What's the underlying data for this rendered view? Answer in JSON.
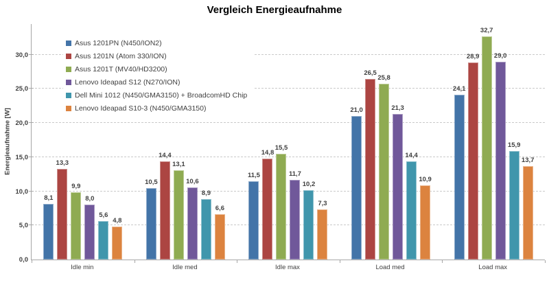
{
  "chart": {
    "title": "Vergleich Energieaufnahme",
    "ylabel": "Energieaufnahme [W]"
  },
  "colors": {
    "axis": "#a6a6a6",
    "grid": "#c9c9c9",
    "text": "#3f3f3f",
    "title": "#000000"
  },
  "chart_data": {
    "type": "bar",
    "title": "Vergleich Energieaufnahme",
    "xlabel": "",
    "ylabel": "Energieaufnahme [W]",
    "categories": [
      "Idle min",
      "Idle med",
      "Idle max",
      "Load med",
      "Load max"
    ],
    "series": [
      {
        "name": "Asus 1201PN (N450/ION2)",
        "color": "#4374A8",
        "values": [
          8.1,
          10.5,
          11.5,
          21.0,
          24.1
        ]
      },
      {
        "name": "Asus 1201N (Atom 330/ION)",
        "color": "#AC4542",
        "values": [
          13.3,
          14.4,
          14.8,
          26.5,
          28.9
        ]
      },
      {
        "name": "Asus 1201T (MV40/HD3200)",
        "color": "#8FAB52",
        "values": [
          9.9,
          13.1,
          15.5,
          25.8,
          32.7
        ]
      },
      {
        "name": "Lenovo Ideapad S12 (N270/ION)",
        "color": "#70589A",
        "values": [
          8.0,
          10.6,
          11.7,
          21.3,
          29.0
        ]
      },
      {
        "name": "Dell Mini 1012 (N450/GMA3150) + BroadcomHD Chip",
        "color": "#4096AC",
        "values": [
          5.6,
          8.9,
          10.2,
          14.4,
          15.9
        ]
      },
      {
        "name": "Lenovo Ideapad S10-3 (N450/GMA3150)",
        "color": "#DC833F",
        "values": [
          4.8,
          6.6,
          7.3,
          10.9,
          13.7
        ]
      }
    ],
    "yticks": [
      0,
      5,
      10,
      15,
      20,
      25,
      30
    ],
    "ylim": [
      0,
      34.5
    ],
    "grid": true,
    "legend_position": "top-left-inside",
    "decimal_separator": ","
  }
}
